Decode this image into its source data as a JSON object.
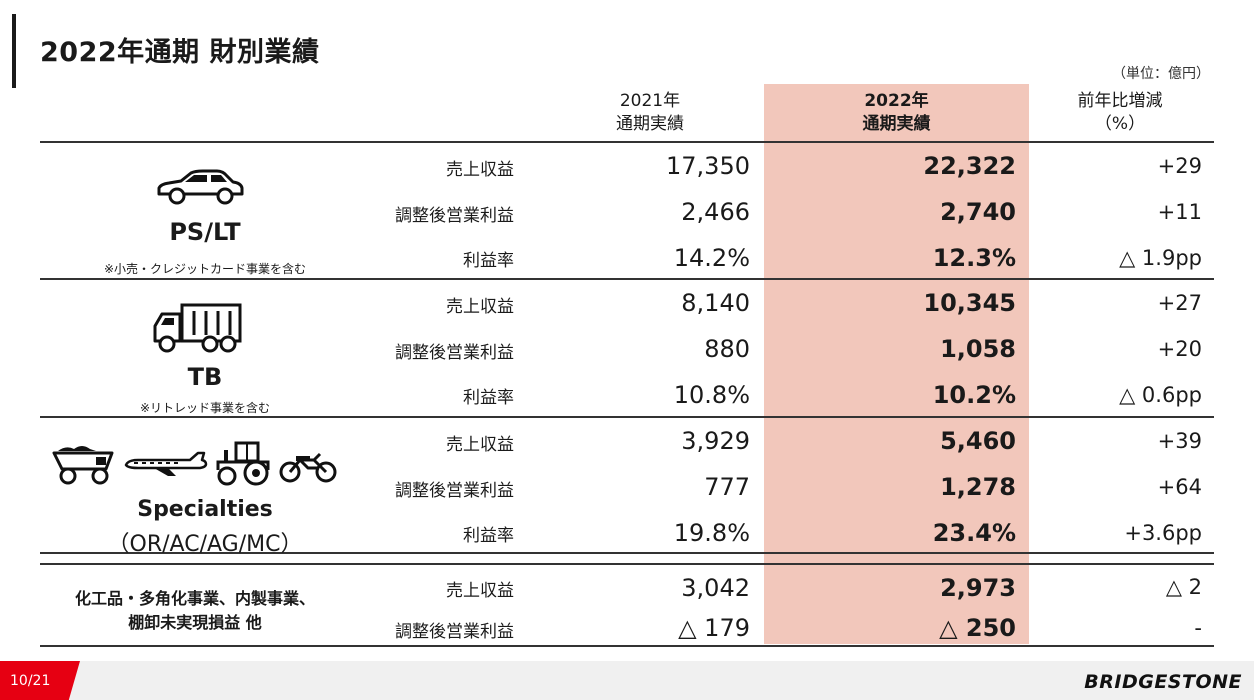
{
  "title": "2022年通期 財別業績",
  "unit": "（単位：億円）",
  "headers": {
    "y2021": [
      "2021年",
      "通期実績"
    ],
    "y2022": [
      "2022年",
      "通期実績"
    ],
    "change": [
      "前年比増減",
      "（%）"
    ]
  },
  "segments": [
    {
      "name": "PS/LT",
      "note": "※小売・クレジットカード事業を含む",
      "icons": [
        "car-icon"
      ],
      "rows": [
        {
          "label": "売上収益",
          "y2021": "17,350",
          "y2022": "22,322",
          "change": "+29"
        },
        {
          "label": "調整後営業利益",
          "y2021": "2,466",
          "y2022": "2,740",
          "change": "+11"
        },
        {
          "label": "利益率",
          "y2021": "14.2%",
          "y2022": "12.3%",
          "change": "△ 1.9pp"
        }
      ]
    },
    {
      "name": "TB",
      "note": "※リトレッド事業を含む",
      "icons": [
        "truck-icon"
      ],
      "rows": [
        {
          "label": "売上収益",
          "y2021": "8,140",
          "y2022": "10,345",
          "change": "+27"
        },
        {
          "label": "調整後営業利益",
          "y2021": "880",
          "y2022": "1,058",
          "change": "+20"
        },
        {
          "label": "利益率",
          "y2021": "10.8%",
          "y2022": "10.2%",
          "change": "△ 0.6pp"
        }
      ]
    },
    {
      "name": "Specialties",
      "name2": "（OR/AC/AG/MC）",
      "icons": [
        "mining-truck-icon",
        "airplane-icon",
        "tractor-icon",
        "motorcycle-icon"
      ],
      "rows": [
        {
          "label": "売上収益",
          "y2021": "3,929",
          "y2022": "5,460",
          "change": "+39"
        },
        {
          "label": "調整後営業利益",
          "y2021": "777",
          "y2022": "1,278",
          "change": "+64"
        },
        {
          "label": "利益率",
          "y2021": "19.8%",
          "y2022": "23.4%",
          "change": "+3.6pp"
        }
      ]
    },
    {
      "name": "化工品・多角化事業、内製事業、",
      "name2": "棚卸未実現損益 他",
      "rows": [
        {
          "label": "売上収益",
          "y2021": "3,042",
          "y2022": "2,973",
          "change": "△ 2"
        },
        {
          "label": "調整後営業利益",
          "y2021": "△ 179",
          "y2022": "△ 250",
          "change": "-"
        }
      ]
    }
  ],
  "footer": {
    "page": "10/21",
    "logo": "BRIDGESTONE"
  },
  "colors": {
    "highlight": "#f2c7bb",
    "accent": "#e60012"
  }
}
